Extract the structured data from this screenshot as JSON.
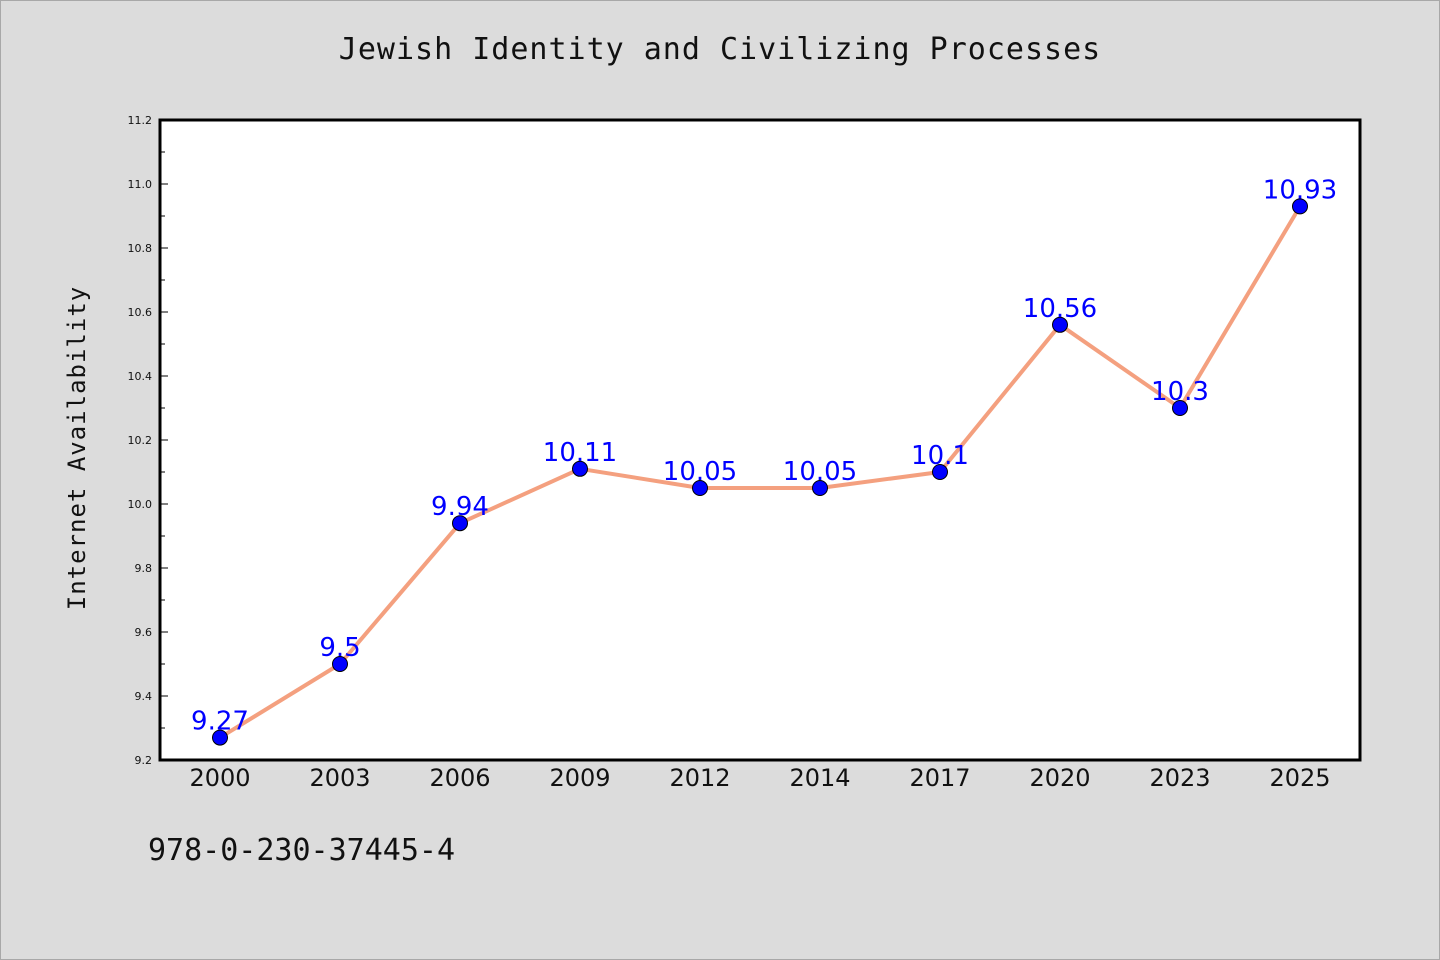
{
  "colors": {
    "background": "#dcdcdc",
    "plot_area": "#ffffff",
    "line": "#f4a07f",
    "marker": "#0000ff",
    "data_label": "#0000ff"
  },
  "caption": "978-0-230-37445-4",
  "chart_data": {
    "type": "line",
    "title": "Jewish Identity and Civilizing Processes",
    "xlabel": "",
    "ylabel": "Internet Availability",
    "categories": [
      "2000",
      "2003",
      "2006",
      "2009",
      "2012",
      "2014",
      "2017",
      "2020",
      "2023",
      "2025"
    ],
    "series": [
      {
        "values": [
          9.27,
          9.5,
          9.94,
          10.11,
          10.05,
          10.05,
          10.1,
          10.56,
          10.3,
          10.93
        ],
        "labels": [
          "9.27",
          "9.5",
          "9.94",
          "10.11",
          "10.05",
          "10.05",
          "10.1",
          "10.56",
          "10.3",
          "10.93"
        ]
      }
    ],
    "ylim": [
      9.2,
      11.2
    ],
    "yticks": [
      "9.2",
      "9.4",
      "9.6",
      "9.8",
      "10.0",
      "10.2",
      "10.4",
      "10.6",
      "10.8",
      "11.0",
      "11.2"
    ],
    "grid": false,
    "legend": "none"
  }
}
